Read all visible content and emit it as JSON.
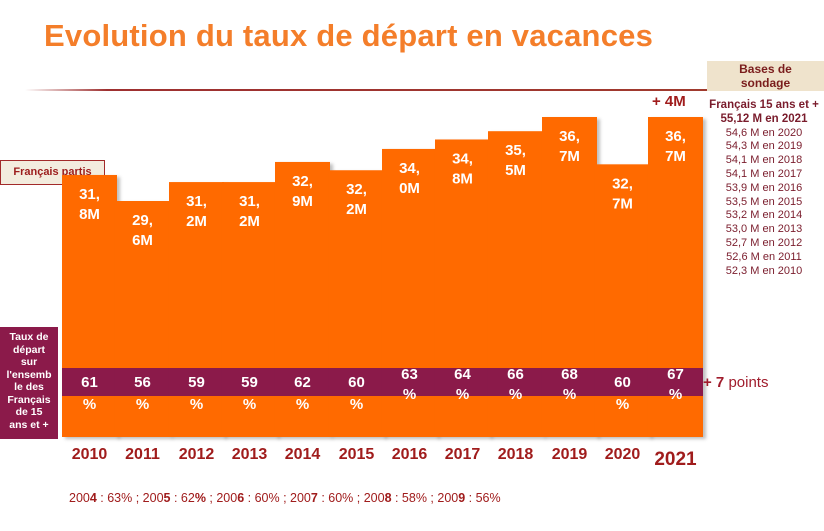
{
  "title": "Evolution du taux de départ en vacances",
  "chart_data": {
    "type": "bar",
    "title": "Evolution du taux de départ en vacances",
    "categories": [
      "2010",
      "2011",
      "2012",
      "2013",
      "2014",
      "2015",
      "2016",
      "2017",
      "2018",
      "2019",
      "2020",
      "2021"
    ],
    "series": [
      {
        "name": "Français partis",
        "unit": "M",
        "values": [
          31.8,
          29.6,
          31.2,
          31.2,
          32.9,
          32.2,
          34.0,
          34.8,
          35.5,
          36.7,
          32.7,
          36.7
        ],
        "labels": [
          [
            "31,",
            "8M"
          ],
          [
            "29,",
            "6M"
          ],
          [
            "31,",
            "2M"
          ],
          [
            "31,",
            "2M"
          ],
          [
            "32,",
            "9M"
          ],
          [
            "32,",
            "2M"
          ],
          [
            "34,",
            "0M"
          ],
          [
            "34,",
            "8M"
          ],
          [
            "35,",
            "5M"
          ],
          [
            "36,",
            "7M"
          ],
          [
            "32,",
            "7M"
          ],
          [
            "36,",
            "7M"
          ]
        ]
      },
      {
        "name": "Taux de départ sur l'ensemble des Français de 15 ans et +",
        "unit": "%",
        "values": [
          61,
          56,
          59,
          59,
          62,
          60,
          63,
          64,
          66,
          68,
          60,
          67
        ]
      }
    ],
    "ylim": [
      0,
      40
    ],
    "xlabel": "",
    "ylabel": "",
    "grid": false,
    "annotations": [
      "+ 4M",
      "+ 7 points"
    ]
  },
  "legend": {
    "partis_label": "Français partis",
    "taux_lines": [
      "Taux de",
      "départ",
      "sur",
      "l'ensemb",
      "le des",
      "Français",
      "de 15",
      "ans et +"
    ]
  },
  "annotations": {
    "plus_4m": "+ 4M",
    "plus_points_bold": "+ 7",
    "plus_points_rest": " points"
  },
  "bases": {
    "title_line1": "Bases de",
    "title_line2": "sondage",
    "head1": "Français 15 ans et +",
    "head2": "55,12 M en 2021",
    "rows": [
      "54,6 M en 2020",
      "54,3 M en 2019",
      "54,1 M en 2018",
      "54,1 M en 2017",
      "53,9 M en 2016",
      "53,5 M en 2015",
      "53,2 M en 2014",
      "53,0 M en 2013",
      "52,7 M en 2012",
      "52,6 M en 2011",
      "52,3 M en 2010"
    ]
  },
  "footnote": [
    {
      "prefix": "200",
      "bold": "4",
      "rest": " : 63% ; "
    },
    {
      "prefix": "200",
      "bold": "5",
      "rest": " : 62",
      "boldpct": "%",
      "tail": " ; "
    },
    {
      "prefix": "200",
      "bold": "6",
      "rest": " : 60% ; "
    },
    {
      "prefix": "200",
      "bold": "7",
      "rest": " : 60% ; "
    },
    {
      "prefix": "200",
      "bold": "8",
      "rest": " : 58% ; "
    },
    {
      "prefix": "200",
      "bold": "9",
      "rest": " : 56%"
    }
  ],
  "colors": {
    "bar": "#ff6a00",
    "band": "#8b1a4a",
    "title": "#f47e2a",
    "year_label": "#a01c1c"
  }
}
